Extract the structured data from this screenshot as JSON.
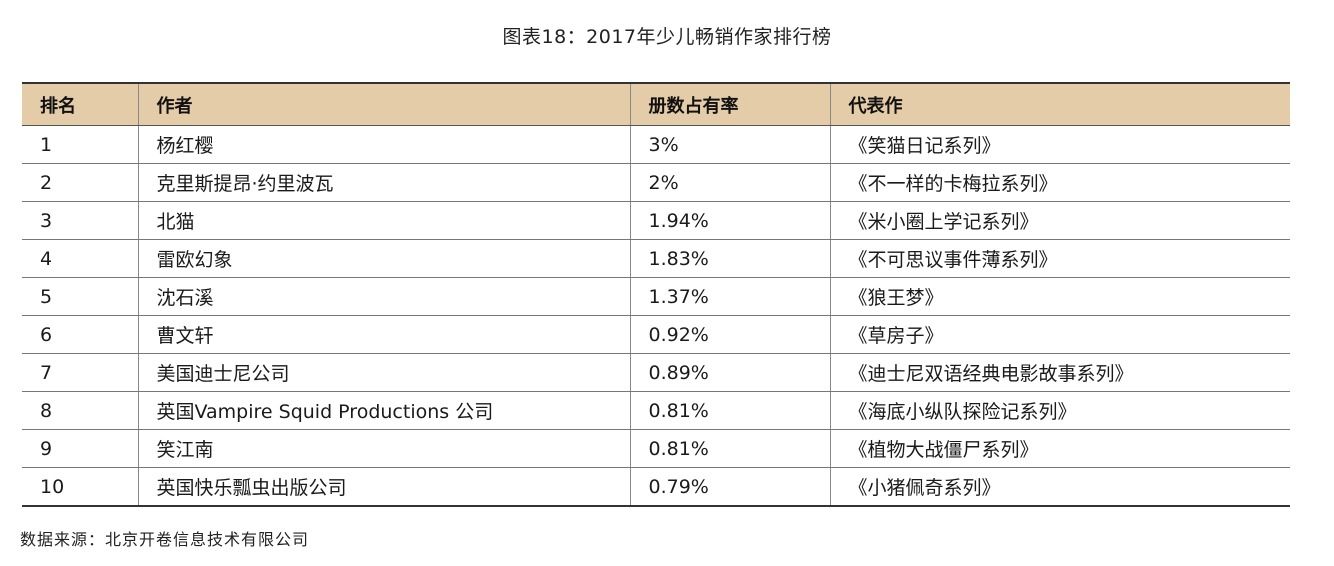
{
  "title": "图表18：2017年少儿畅销作家排行榜",
  "table": {
    "headers": [
      "排名",
      "作者",
      "册数占有率",
      "代表作"
    ],
    "rows": [
      [
        "1",
        "杨红樱",
        "3%",
        "《笑猫日记系列》"
      ],
      [
        "2",
        "克里斯提昂·约里波瓦",
        "2%",
        "《不一样的卡梅拉系列》"
      ],
      [
        "3",
        "北猫",
        "1.94%",
        "《米小圈上学记系列》"
      ],
      [
        "4",
        "雷欧幻象",
        "1.83%",
        "《不可思议事件薄系列》"
      ],
      [
        "5",
        "沈石溪",
        "1.37%",
        "《狼王梦》"
      ],
      [
        "6",
        "曹文轩",
        "0.92%",
        "《草房子》"
      ],
      [
        "7",
        "美国迪士尼公司",
        "0.89%",
        "《迪士尼双语经典电影故事系列》"
      ],
      [
        "8",
        "英国Vampire Squid Productions 公司",
        "0.81%",
        "《海底小纵队探险记系列》"
      ],
      [
        "9",
        "笑江南",
        "0.81%",
        "《植物大战僵尸系列》"
      ],
      [
        "10",
        "英国快乐瓢虫出版公司",
        "0.79%",
        "《小猪佩奇系列》"
      ]
    ]
  },
  "source": "数据来源：北京开卷信息技术有限公司",
  "colors": {
    "header_bg": "#e5cca8"
  }
}
